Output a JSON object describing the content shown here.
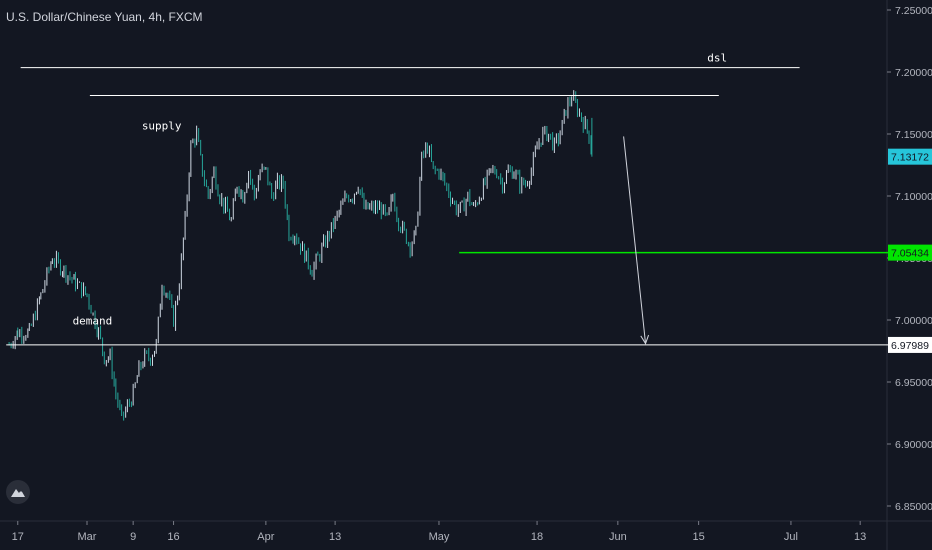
{
  "header": {
    "title": "U.S. Dollar/Chinese Yuan, 4h, FXCM"
  },
  "colors": {
    "background": "#131722",
    "candle_up": "#cfd8e3",
    "candle_down": "#26a69a",
    "line_white": "#ffffff",
    "line_green": "#00e600",
    "last_price_tag": "#26c6da",
    "axis_text": "#b2b5be"
  },
  "chart_data": {
    "type": "candlestick",
    "title": "U.S. Dollar/Chinese Yuan, 4h, FXCM",
    "y_axis": {
      "range": [
        6.84,
        7.255
      ],
      "ticks": [
        "7.25000",
        "7.20000",
        "7.15000",
        "7.10000",
        "7.05000",
        "7.00000",
        "6.95000",
        "6.90000",
        "6.85000"
      ],
      "tick_values": [
        7.25,
        7.2,
        7.15,
        7.1,
        7.05,
        7.0,
        6.95,
        6.9,
        6.85
      ]
    },
    "x_axis": {
      "labels": [
        "17",
        "Mar",
        "9",
        "16",
        "Apr",
        "13",
        "May",
        "18",
        "Jun",
        "15",
        "Jul",
        "13"
      ],
      "label_days": [
        -12,
        0,
        8,
        15,
        31,
        43,
        61,
        78,
        92,
        106,
        122,
        134
      ]
    },
    "price_path": [
      [
        -13.5,
        6.98
      ],
      [
        -12,
        6.99
      ],
      [
        -10,
        6.99
      ],
      [
        -8,
        7.02
      ],
      [
        -6,
        7.05
      ],
      [
        -4,
        7.04
      ],
      [
        -2,
        7.03
      ],
      [
        0,
        7.02
      ],
      [
        2,
        6.99
      ],
      [
        3,
        6.97
      ],
      [
        4,
        6.97
      ],
      [
        5,
        6.94
      ],
      [
        6,
        6.92
      ],
      [
        7,
        6.93
      ],
      [
        8,
        6.94
      ],
      [
        9,
        6.96
      ],
      [
        10,
        6.97
      ],
      [
        11,
        6.97
      ],
      [
        12,
        6.98
      ],
      [
        13,
        7.03
      ],
      [
        14,
        7.02
      ],
      [
        15,
        7.0
      ],
      [
        16,
        7.03
      ],
      [
        17,
        7.08
      ],
      [
        18,
        7.14
      ],
      [
        19,
        7.15
      ],
      [
        20,
        7.12
      ],
      [
        21,
        7.1
      ],
      [
        22,
        7.12
      ],
      [
        23,
        7.1
      ],
      [
        24,
        7.09
      ],
      [
        25,
        7.08
      ],
      [
        26,
        7.11
      ],
      [
        27,
        7.1
      ],
      [
        28,
        7.12
      ],
      [
        29,
        7.1
      ],
      [
        30,
        7.12
      ],
      [
        31,
        7.12
      ],
      [
        32,
        7.1
      ],
      [
        33,
        7.11
      ],
      [
        34,
        7.11
      ],
      [
        35,
        7.07
      ],
      [
        36,
        7.07
      ],
      [
        37,
        7.06
      ],
      [
        38,
        7.05
      ],
      [
        39,
        7.04
      ],
      [
        40,
        7.05
      ],
      [
        41,
        7.06
      ],
      [
        42,
        7.07
      ],
      [
        43,
        7.08
      ],
      [
        44,
        7.09
      ],
      [
        45,
        7.1
      ],
      [
        46,
        7.1
      ],
      [
        47,
        7.11
      ],
      [
        48,
        7.09
      ],
      [
        49,
        7.09
      ],
      [
        50,
        7.09
      ],
      [
        51,
        7.09
      ],
      [
        52,
        7.08
      ],
      [
        53,
        7.1
      ],
      [
        54,
        7.08
      ],
      [
        55,
        7.07
      ],
      [
        56,
        7.06
      ],
      [
        57,
        7.07
      ],
      [
        58,
        7.13
      ],
      [
        59,
        7.14
      ],
      [
        60,
        7.12
      ],
      [
        61,
        7.12
      ],
      [
        62,
        7.11
      ],
      [
        63,
        7.1
      ],
      [
        64,
        7.09
      ],
      [
        65,
        7.09
      ],
      [
        66,
        7.1
      ],
      [
        67,
        7.09
      ],
      [
        68,
        7.1
      ],
      [
        69,
        7.11
      ],
      [
        70,
        7.12
      ],
      [
        71,
        7.12
      ],
      [
        72,
        7.11
      ],
      [
        73,
        7.12
      ],
      [
        74,
        7.12
      ],
      [
        75,
        7.11
      ],
      [
        76,
        7.11
      ],
      [
        77,
        7.12
      ],
      [
        78,
        7.14
      ],
      [
        79,
        7.15
      ],
      [
        80,
        7.15
      ],
      [
        81,
        7.14
      ],
      [
        82,
        7.15
      ],
      [
        83,
        7.17
      ],
      [
        84,
        7.18
      ],
      [
        85,
        7.17
      ],
      [
        86,
        7.16
      ],
      [
        87,
        7.15
      ],
      [
        87.5,
        7.1317
      ]
    ],
    "lines": [
      {
        "label": "dsl",
        "value": 7.2035,
        "x_start": -11.5,
        "x_end": 123.5,
        "color": "#ffffff"
      },
      {
        "label": "",
        "value": 7.181,
        "x_start": 0.5,
        "x_end": 109.5,
        "color": "#ffffff"
      },
      {
        "label": "",
        "value": 7.05434,
        "x_start": 64.5,
        "x_end": 139,
        "color": "#00e600"
      },
      {
        "label": "",
        "value": 6.97989,
        "x_start": -14,
        "x_end": 139,
        "color": "#ffffff"
      }
    ],
    "annotations": [
      {
        "text": "dsl",
        "x": 107.5,
        "y": 7.2085
      },
      {
        "text": "supply",
        "x": 9.5,
        "y": 7.1535
      },
      {
        "text": "demand",
        "x": -2.5,
        "y": 6.9965
      }
    ],
    "arrow": {
      "from": [
        93,
        7.148
      ],
      "to": [
        96.8,
        6.981
      ]
    },
    "price_tags": [
      {
        "text": "7.13172",
        "value": 7.13172,
        "bg": "#26c6da",
        "fg": "#131722"
      },
      {
        "text": "7.05434",
        "value": 7.05434,
        "bg": "#00e600",
        "fg": "#131722"
      },
      {
        "text": "6.97989",
        "value": 6.97989,
        "bg": "#ffffff",
        "fg": "#131722"
      }
    ]
  }
}
